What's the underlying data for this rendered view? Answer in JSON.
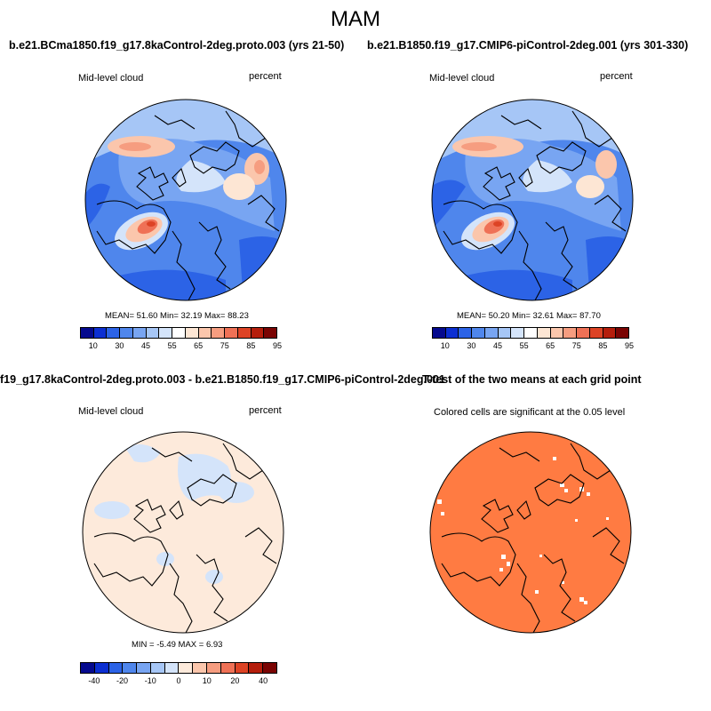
{
  "season": "MAM",
  "panels": [
    {
      "title": "b.e21.BCma1850.f19_g17.8kaControl-2deg.proto.003 (yrs 21-50)",
      "left_label": "Mid-level cloud",
      "right_label": "percent",
      "stats": "MEAN=  51.60   Min=  32.19   Max=  88.23"
    },
    {
      "title": "b.e21.B1850.f19_g17.CMIP6-piControl-2deg.001 (yrs 301-330)",
      "left_label": "Mid-level cloud",
      "right_label": "percent",
      "stats": "MEAN=  50.20   Min=  32.61   Max=  87.70"
    },
    {
      "title": "f19_g17.8kaControl-2deg.proto.003 - b.e21.B1850.f19_g17.CMIP6-piControl-2deg.001",
      "left_label": "Mid-level cloud",
      "right_label": "percent",
      "stats": "MIN =  -5.49  MAX =    6.93"
    },
    {
      "title": "T-test of the two means at each grid point",
      "left_label": "Colored cells are significant at the 0.05 level"
    }
  ],
  "colorbar_abs": {
    "ticks": [
      "10",
      "30",
      "45",
      "55",
      "65",
      "75",
      "85",
      "95"
    ],
    "colors": [
      "#050a8e",
      "#0c2fd2",
      "#2c63e6",
      "#4f86ec",
      "#78a5f2",
      "#a6c6f6",
      "#d4e4fa",
      "#ffffff",
      "#fde6d4",
      "#fbc6ac",
      "#f69d80",
      "#ef7156",
      "#dd4325",
      "#b51e0c",
      "#7a0403"
    ]
  },
  "colorbar_diff": {
    "ticks": [
      "-40",
      "-20",
      "-10",
      "0",
      "10",
      "20",
      "40"
    ],
    "colors": [
      "#050a8e",
      "#0c2fd2",
      "#2c63e6",
      "#4f86ec",
      "#78a5f2",
      "#a6c6f6",
      "#d4e4fa",
      "#fdeadb",
      "#fbc6ac",
      "#f69d80",
      "#ef7156",
      "#dd4325",
      "#b51e0c",
      "#7a0403"
    ]
  }
}
